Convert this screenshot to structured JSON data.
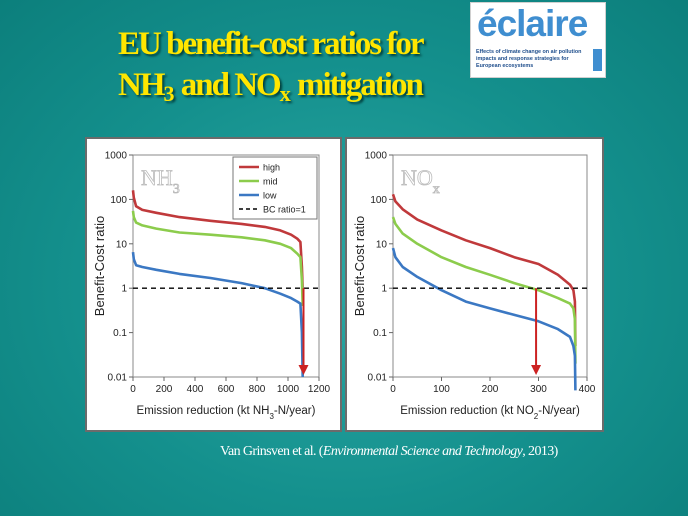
{
  "slide": {
    "title_line1": "EU benefit-cost ratios for",
    "title_nh": "NH",
    "title_nh_sub": "3",
    "title_and": " and NO",
    "title_no_sub": "x",
    "title_rest": " mitigation"
  },
  "logo": {
    "name": "éclaire",
    "tagline": "Effects of climate change on air pollution impacts and response strategies for European ecosystems",
    "icon": "eclaire-logo"
  },
  "citation": {
    "prefix": "Van Grinsven et al. (",
    "journal": "Environmental Science and Technology",
    "suffix": ", 2013)"
  },
  "chart_data": [
    {
      "type": "line",
      "panel_label": "NH",
      "panel_label_sub": "3",
      "ylabel": "Benefit-Cost ratio",
      "xlabel_pre": "Emission reduction  (kt NH",
      "xlabel_sub": "3",
      "xlabel_post": "-N/year)",
      "xlim": [
        0,
        1200
      ],
      "ylim": [
        0.01,
        1000
      ],
      "yscale": "log",
      "xticks": [
        "0",
        "200",
        "400",
        "600",
        "800",
        "1000",
        "1200"
      ],
      "yticks": [
        "0.01",
        "0.1",
        "1",
        "10",
        "100",
        "1000"
      ],
      "legend_position": "top-right",
      "arrow_x": 1100,
      "colors": {
        "high": "#c0393b",
        "mid": "#8ccc4c",
        "low": "#3b78c3",
        "ref": "#000000",
        "arrow": "#cc2222"
      },
      "series": [
        {
          "name": "high",
          "x": [
            0,
            5,
            20,
            60,
            150,
            300,
            500,
            700,
            850,
            950,
            1020,
            1060,
            1080,
            1090,
            1095
          ],
          "y": [
            160,
            110,
            70,
            58,
            50,
            40,
            33,
            28,
            24,
            20,
            16,
            13,
            11,
            3,
            0.9
          ]
        },
        {
          "name": "mid",
          "x": [
            0,
            5,
            20,
            60,
            150,
            300,
            500,
            700,
            850,
            950,
            1020,
            1060,
            1080,
            1090,
            1095
          ],
          "y": [
            55,
            40,
            30,
            26,
            22,
            18,
            16,
            14,
            12,
            10,
            8,
            6,
            5,
            1.5,
            0.4
          ]
        },
        {
          "name": "low",
          "x": [
            0,
            5,
            20,
            60,
            150,
            300,
            500,
            700,
            850,
            950,
            1020,
            1060,
            1080,
            1090,
            1095
          ],
          "y": [
            6.5,
            4.5,
            3.3,
            3.0,
            2.6,
            2.1,
            1.7,
            1.3,
            1.0,
            0.75,
            0.6,
            0.5,
            0.45,
            0.1,
            0.01
          ]
        },
        {
          "name": "BC ratio=1",
          "x": [
            0,
            1200
          ],
          "y": [
            1,
            1
          ]
        }
      ]
    },
    {
      "type": "line",
      "panel_label": "NO",
      "panel_label_sub": "x",
      "ylabel": "Benefit-Cost ratio",
      "xlabel_pre": "Emission reduction  (kt NO",
      "xlabel_sub": "2",
      "xlabel_post": "-N/year)",
      "xlim": [
        0,
        400
      ],
      "ylim": [
        0.01,
        1000
      ],
      "yscale": "log",
      "xticks": [
        "0",
        "100",
        "200",
        "300",
        "400"
      ],
      "yticks": [
        "0.01",
        "0.1",
        "1",
        "10",
        "100",
        "1000"
      ],
      "legend_position": "none",
      "arrow_x": 295,
      "colors": {
        "high": "#c0393b",
        "mid": "#8ccc4c",
        "low": "#3b78c3",
        "ref": "#000000",
        "arrow": "#cc2222"
      },
      "series": [
        {
          "name": "high",
          "x": [
            0,
            5,
            20,
            50,
            100,
            150,
            200,
            250,
            300,
            340,
            365,
            372,
            375,
            376
          ],
          "y": [
            130,
            90,
            60,
            35,
            20,
            12,
            8,
            5,
            3.5,
            2.0,
            1.2,
            0.9,
            0.5,
            0.05
          ]
        },
        {
          "name": "mid",
          "x": [
            0,
            5,
            20,
            50,
            100,
            150,
            200,
            250,
            300,
            340,
            365,
            372,
            375,
            376
          ],
          "y": [
            40,
            28,
            17,
            10,
            5,
            3,
            2,
            1.3,
            0.9,
            0.6,
            0.45,
            0.35,
            0.2,
            0.02
          ]
        },
        {
          "name": "low",
          "x": [
            0,
            5,
            20,
            50,
            100,
            150,
            200,
            250,
            300,
            340,
            365,
            372,
            375,
            376
          ],
          "y": [
            8,
            5,
            3,
            1.8,
            0.9,
            0.5,
            0.35,
            0.25,
            0.18,
            0.12,
            0.08,
            0.05,
            0.03,
            0.005
          ]
        },
        {
          "name": "BC ratio=1",
          "x": [
            0,
            400
          ],
          "y": [
            1,
            1
          ]
        }
      ]
    }
  ]
}
